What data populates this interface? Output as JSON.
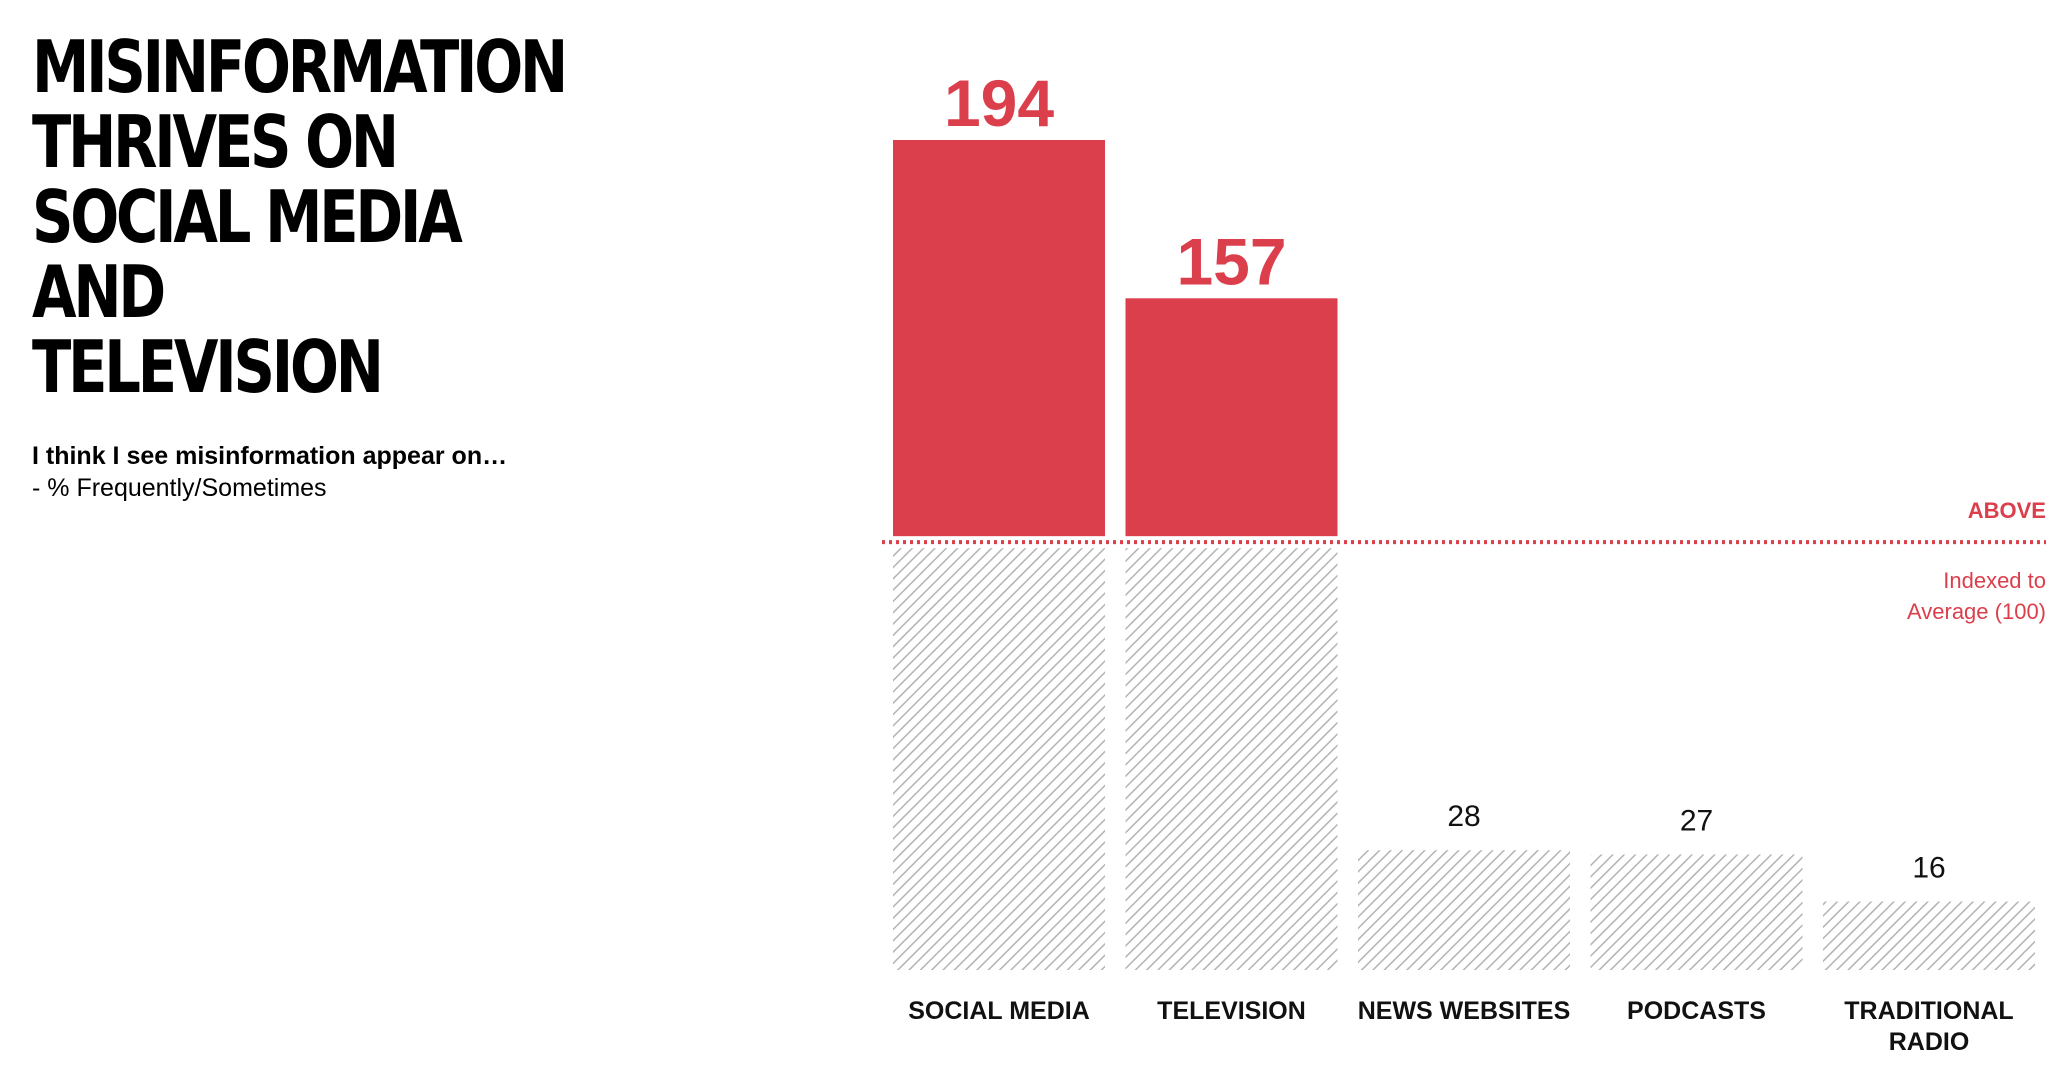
{
  "headline": "MISINFORMATION THRIVES ON SOCIAL MEDIA AND TELEVISION",
  "subtitle": {
    "question": "I think I see misinformation appear on…",
    "measure": "- % Frequently/Sometimes"
  },
  "colors": {
    "above": "#DC3F4C",
    "below_hatch": "#B3B3B3",
    "text": "#111111"
  },
  "chart_data": {
    "type": "bar",
    "categories": [
      "SOCIAL MEDIA",
      "TELEVISION",
      "NEWS WEBSITES",
      "PODCASTS",
      "TRADITIONAL RADIO"
    ],
    "values": [
      194,
      157,
      28,
      27,
      16
    ],
    "data_labels": [
      "194",
      "157",
      "28",
      "27",
      "16"
    ],
    "baseline": 100,
    "baseline_label_above": "ABOVE",
    "baseline_label_note": "Indexed to Average (100)",
    "ylim": [
      0,
      194
    ],
    "grid": false,
    "legend": "none",
    "style": "values above the baseline in solid red; portion below the baseline hatched grey"
  }
}
